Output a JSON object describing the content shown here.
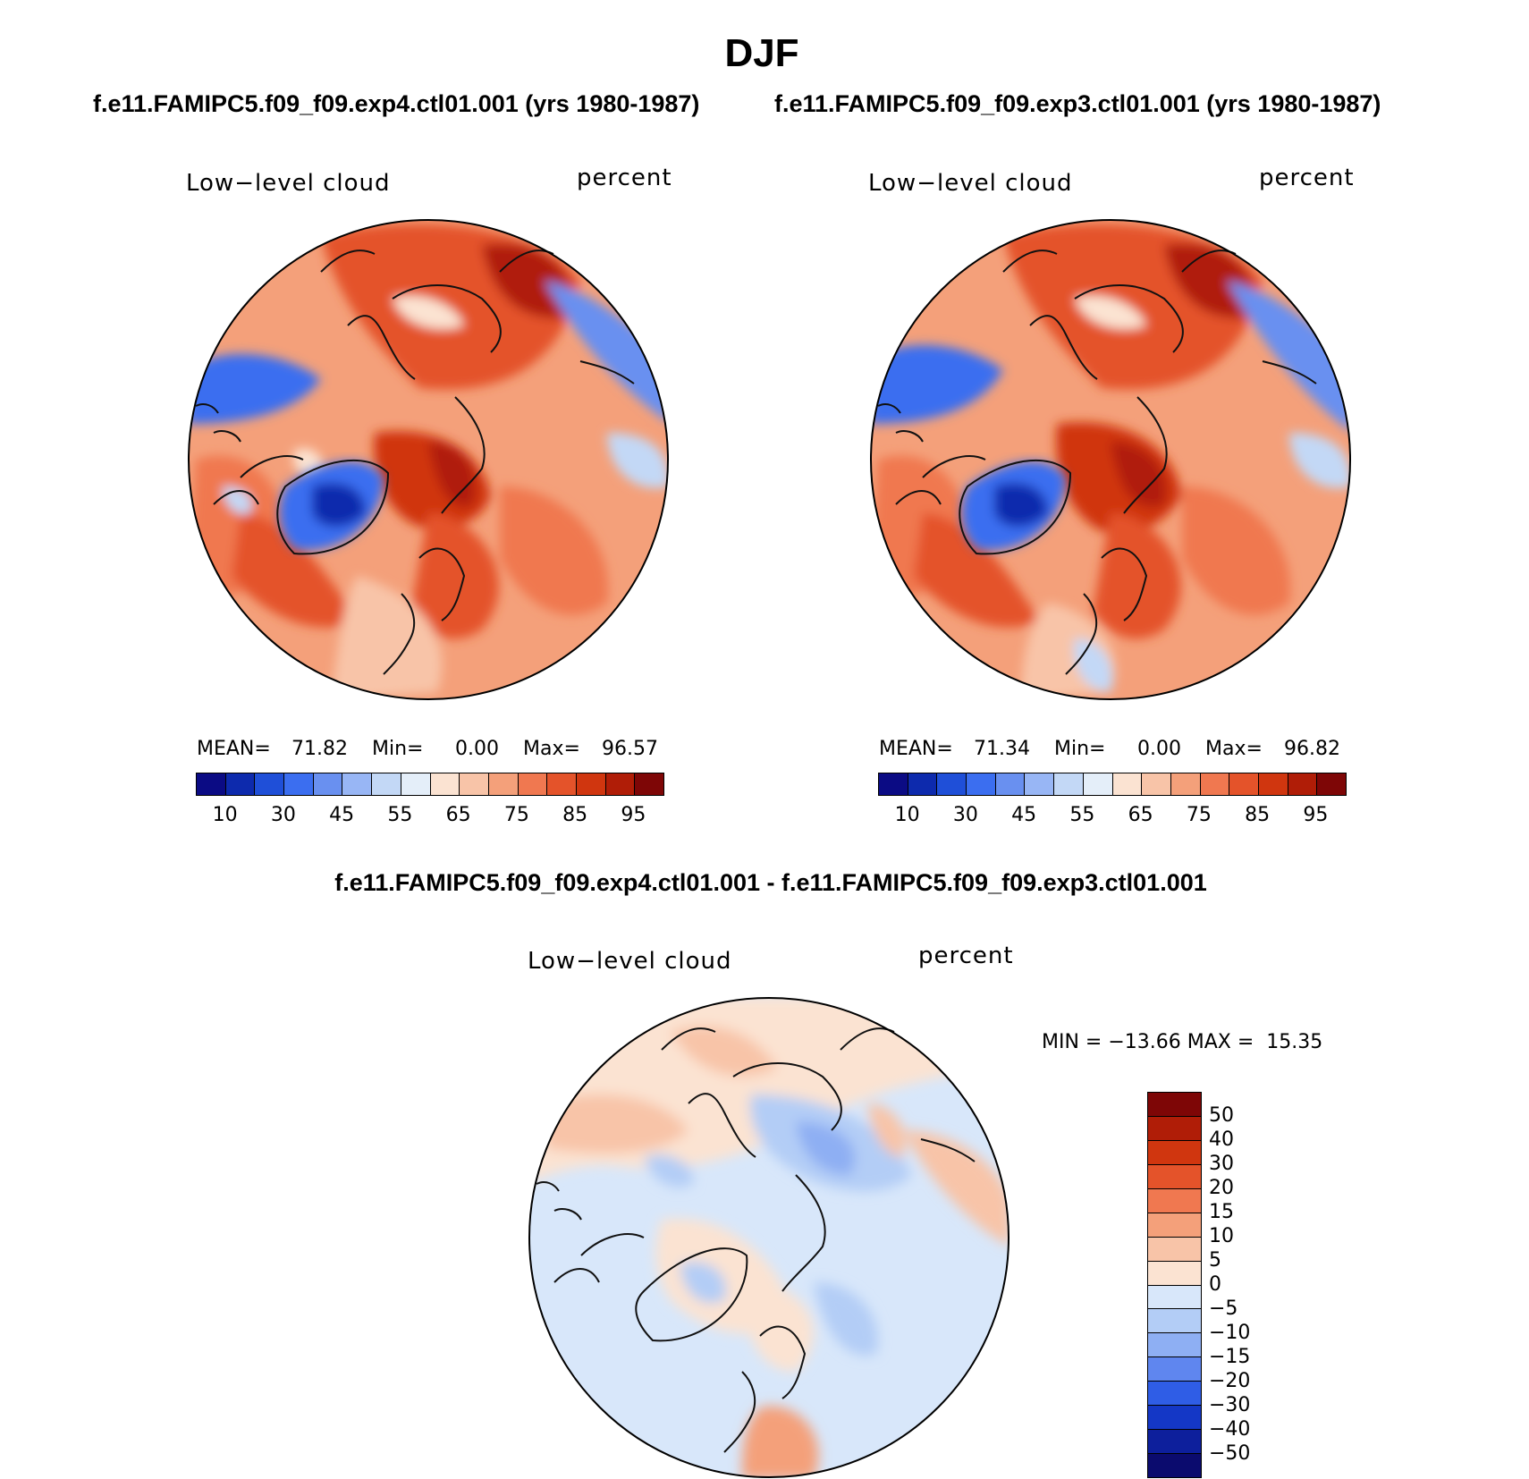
{
  "title": "DJF",
  "panels": [
    {
      "case_label": "f.e11.FAMIPC5.f09_f09.exp4.ctl01.001 (yrs 1980-1987)",
      "variable": "Low−level cloud",
      "units": "percent",
      "stats": {
        "mean_label": "MEAN=",
        "mean": "71.82",
        "min_label": "Min=",
        "min": "0.00",
        "max_label": "Max=",
        "max": "96.57"
      },
      "colorbar_ticks": [
        "10",
        "30",
        "45",
        "55",
        "65",
        "75",
        "85",
        "95"
      ]
    },
    {
      "case_label": "f.e11.FAMIPC5.f09_f09.exp3.ctl01.001 (yrs 1980-1987)",
      "variable": "Low−level cloud",
      "units": "percent",
      "stats": {
        "mean_label": "MEAN=",
        "mean": "71.34",
        "min_label": "Min=",
        "min": "0.00",
        "max_label": "Max=",
        "max": "96.82"
      },
      "colorbar_ticks": [
        "10",
        "30",
        "45",
        "55",
        "65",
        "75",
        "85",
        "95"
      ]
    }
  ],
  "difference": {
    "label": "f.e11.FAMIPC5.f09_f09.exp4.ctl01.001 - f.e11.FAMIPC5.f09_f09.exp3.ctl01.001",
    "variable": "Low−level cloud",
    "units": "percent",
    "stats": "MIN = −13.66 MAX =  15.35",
    "colorbar_ticks": [
      "50",
      "40",
      "30",
      "20",
      "15",
      "10",
      "5",
      "0",
      "−5",
      "−10",
      "−15",
      "−20",
      "−30",
      "−40",
      "−50"
    ]
  },
  "colors": {
    "abs_scale": [
      "#0b0b84",
      "#0d2aad",
      "#1f4fd8",
      "#3b6ef0",
      "#6990f0",
      "#98b6f5",
      "#c3d8f6",
      "#e4eef9",
      "#fbe3d2",
      "#f8c4a8",
      "#f4a07a",
      "#f07850",
      "#e4532a",
      "#d0360f",
      "#b01d07",
      "#7e0606"
    ],
    "diff_scale": [
      "#7e0606",
      "#b01d07",
      "#d0360f",
      "#e4532a",
      "#f07850",
      "#f4a07a",
      "#f8c4a8",
      "#fbe3d2",
      "#d8e7fa",
      "#b3cdf6",
      "#8eaff3",
      "#5f86ef",
      "#2f5de6",
      "#1437c6",
      "#0d1f9c",
      "#0b0b6e"
    ]
  }
}
